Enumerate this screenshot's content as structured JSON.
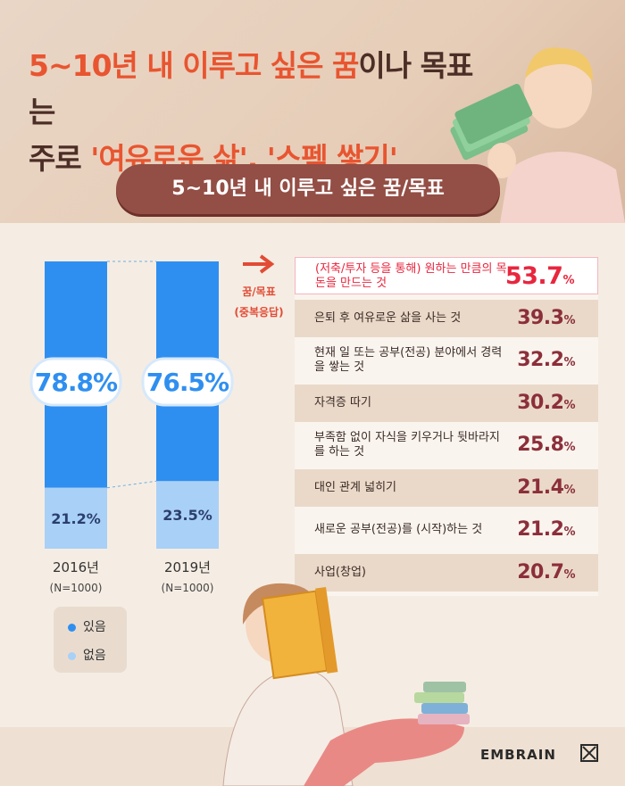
{
  "headline": {
    "line1_a": "5~10년 내 이루고 싶은 꿈",
    "line1_b": "이나 목표는",
    "line2_a": "주로 ",
    "line2_b": "'여유로운 삶', '스펙 쌓기'"
  },
  "section_title": "5~10년 내 이루고 싶은 꿈/목표",
  "arrow_label_line1": "꿈/목표",
  "arrow_label_line2": "(중복응답)",
  "legend": {
    "yes": "있음",
    "no": "없음"
  },
  "brand": "EMBRAIN",
  "colors": {
    "yes": "#2f8ff0",
    "no": "#a9d0f7",
    "rank_top": "#e8263e",
    "rank": "#8b2f3a"
  },
  "chart_data": [
    {
      "type": "bar",
      "stacked": true,
      "categories": [
        "2016년",
        "2019년"
      ],
      "sample_sizes": [
        "(N=1000)",
        "(N=1000)"
      ],
      "series": [
        {
          "name": "있음",
          "values": [
            78.8,
            76.5
          ],
          "labels": [
            "78.8%",
            "76.5%"
          ]
        },
        {
          "name": "없음",
          "values": [
            21.2,
            23.5
          ],
          "labels": [
            "21.2%",
            "23.5%"
          ]
        }
      ],
      "ylim": [
        0,
        100
      ]
    },
    {
      "type": "table",
      "rows": [
        {
          "label": "(저축/투자 등을 통해) 원하는 만큼의 목돈을 만드는 것",
          "value": 53.7
        },
        {
          "label": "은퇴 후 여유로운 삶을 사는 것",
          "value": 39.3
        },
        {
          "label": "현재 일 또는 공부(전공) 분야에서 경력을 쌓는 것",
          "value": 32.2
        },
        {
          "label": "자격증 따기",
          "value": 30.2
        },
        {
          "label": "부족함 없이 자식을 키우거나 뒷바라지를 하는 것",
          "value": 25.8
        },
        {
          "label": "대인 관계 넓히기",
          "value": 21.4
        },
        {
          "label": "새로운 공부(전공)를 (시작)하는 것",
          "value": 21.2
        },
        {
          "label": "사업(창업)",
          "value": 20.7
        }
      ]
    }
  ]
}
